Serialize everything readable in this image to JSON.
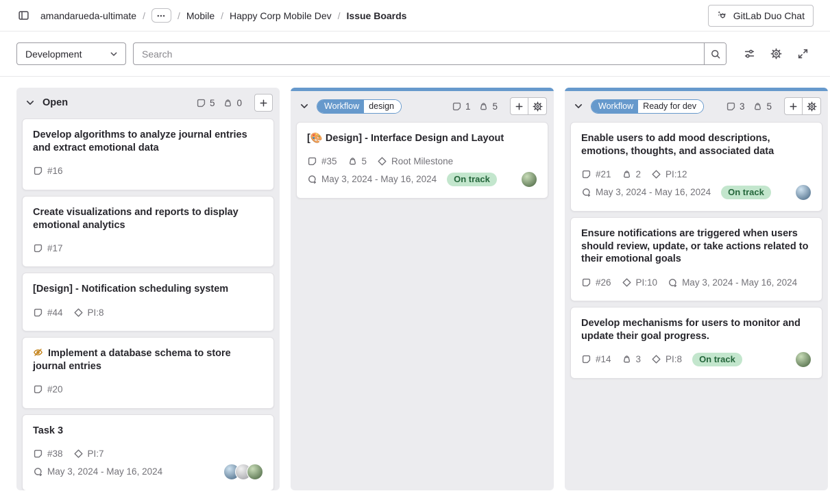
{
  "breadcrumb": {
    "project": "amandarueda-ultimate",
    "separator": "/",
    "ellipsis": "•••",
    "items": [
      "Mobile",
      "Happy Corp Mobile Dev"
    ],
    "current": "Issue Boards"
  },
  "header": {
    "duo_chat_label": "GitLab Duo Chat"
  },
  "toolbar": {
    "board_name": "Development",
    "search_placeholder": "Search"
  },
  "colors": {
    "accent_blue": "#6699cc",
    "badge_green_bg": "#c3e6cd",
    "badge_green_text": "#24663b",
    "confidential_orange": "#c17d10",
    "column_bg": "#ececef"
  },
  "board": {
    "columns": [
      {
        "id": "open",
        "title": "Open",
        "scoped": null,
        "accent": null,
        "issue_count": "5",
        "total_weight": "0",
        "has_settings": false,
        "cards": [
          {
            "title": "Develop algorithms to analyze journal entries and extract emotional data",
            "confidential": false,
            "rows": [
              {
                "items": [
                  {
                    "type": "issue",
                    "text": "#16"
                  }
                ]
              }
            ]
          },
          {
            "title": "Create visualizations and reports to display emotional analytics",
            "confidential": false,
            "rows": [
              {
                "items": [
                  {
                    "type": "issue",
                    "text": "#17"
                  }
                ]
              }
            ]
          },
          {
            "title": "[Design] - Notification scheduling system",
            "confidential": false,
            "rows": [
              {
                "items": [
                  {
                    "type": "issue",
                    "text": "#44"
                  },
                  {
                    "type": "milestone",
                    "text": "PI:8"
                  }
                ]
              }
            ]
          },
          {
            "title": "Implement a database schema to store journal entries",
            "confidential": true,
            "rows": [
              {
                "items": [
                  {
                    "type": "issue",
                    "text": "#20"
                  }
                ]
              }
            ]
          },
          {
            "title": "Task 3",
            "confidential": false,
            "rows": [
              {
                "items": [
                  {
                    "type": "issue",
                    "text": "#38"
                  },
                  {
                    "type": "milestone",
                    "text": "PI:7"
                  }
                ]
              },
              {
                "items": [
                  {
                    "type": "iteration",
                    "text": "May 3, 2024 - May 16, 2024"
                  }
                ],
                "avatars": [
                  {
                    "from": "#cfe2f0",
                    "to": "#41627f"
                  },
                  {
                    "from": "#f2f2f2",
                    "to": "#9a9aa0"
                  },
                  {
                    "from": "#c8dcb8",
                    "to": "#44603c"
                  }
                ]
              }
            ]
          }
        ]
      },
      {
        "id": "workflow-design",
        "title": null,
        "scoped": {
          "scope": "Workflow",
          "value": "design"
        },
        "accent": "#6699cc",
        "issue_count": "1",
        "total_weight": "5",
        "has_settings": true,
        "cards": [
          {
            "title": "[🎨 Design] - Interface Design and Layout",
            "confidential": false,
            "rows": [
              {
                "items": [
                  {
                    "type": "issue",
                    "text": "#35"
                  },
                  {
                    "type": "weight",
                    "text": "5"
                  },
                  {
                    "type": "milestone",
                    "text": "Root Milestone"
                  }
                ]
              },
              {
                "items": [
                  {
                    "type": "iteration",
                    "text": "May 3, 2024 - May 16, 2024"
                  },
                  {
                    "type": "badge",
                    "text": "On track"
                  }
                ],
                "avatars": [
                  {
                    "from": "#c8dcb8",
                    "to": "#44603c"
                  }
                ]
              }
            ]
          }
        ]
      },
      {
        "id": "workflow-ready-for-dev",
        "title": null,
        "scoped": {
          "scope": "Workflow",
          "value": "Ready for dev"
        },
        "accent": "#6699cc",
        "issue_count": "3",
        "total_weight": "5",
        "has_settings": true,
        "cards": [
          {
            "title": "Enable users to add mood descriptions, emotions, thoughts, and associated data",
            "confidential": false,
            "rows": [
              {
                "items": [
                  {
                    "type": "issue",
                    "text": "#21"
                  },
                  {
                    "type": "weight",
                    "text": "2"
                  },
                  {
                    "type": "milestone",
                    "text": "PI:12"
                  }
                ]
              },
              {
                "items": [
                  {
                    "type": "iteration",
                    "text": "May 3, 2024 - May 16, 2024"
                  },
                  {
                    "type": "badge",
                    "text": "On track"
                  }
                ],
                "avatars": [
                  {
                    "from": "#cfe2f0",
                    "to": "#41627f"
                  }
                ]
              }
            ]
          },
          {
            "title": "Ensure notifications are triggered when users should review, update, or take actions related to their emotional goals",
            "confidential": false,
            "rows": [
              {
                "items": [
                  {
                    "type": "issue",
                    "text": "#26"
                  },
                  {
                    "type": "milestone",
                    "text": "PI:10"
                  },
                  {
                    "type": "iteration",
                    "text": "May 3, 2024 - May 16, 2024"
                  }
                ]
              }
            ]
          },
          {
            "title": "Develop mechanisms for users to monitor and update their goal progress.",
            "confidential": false,
            "rows": [
              {
                "items": [
                  {
                    "type": "issue",
                    "text": "#14"
                  },
                  {
                    "type": "weight",
                    "text": "3"
                  },
                  {
                    "type": "milestone",
                    "text": "PI:8"
                  },
                  {
                    "type": "badge",
                    "text": "On track"
                  }
                ],
                "avatars": [
                  {
                    "from": "#c8dcb8",
                    "to": "#44603c"
                  }
                ]
              }
            ]
          }
        ]
      }
    ]
  }
}
